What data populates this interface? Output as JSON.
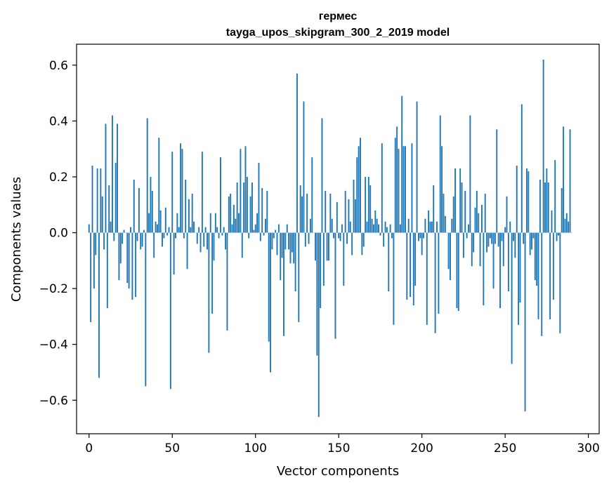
{
  "chart_data": {
    "type": "bar",
    "title": "гермес",
    "subtitle": "tayga_upos_skipgram_300_2_2019 model",
    "xlabel": "Vector components",
    "ylabel": "Components values",
    "xlim": [
      -7.5,
      306.5
    ],
    "ylim": [
      -0.72,
      0.675
    ],
    "x_ticks": [
      0,
      50,
      100,
      150,
      200,
      250,
      300
    ],
    "x_tick_labels": [
      "0",
      "50",
      "100",
      "150",
      "200",
      "250",
      "300"
    ],
    "y_ticks": [
      -0.6,
      -0.4,
      -0.2,
      0.0,
      0.2,
      0.4,
      0.6
    ],
    "y_tick_labels": [
      "−0.6",
      "−0.4",
      "−0.2",
      "0.0",
      "0.2",
      "0.4",
      "0.6"
    ],
    "grid": false,
    "bar_color": "#1f77b4",
    "values": [
      0.03,
      -0.32,
      0.24,
      -0.2,
      -0.08,
      0.23,
      -0.52,
      0.23,
      0.13,
      -0.06,
      0.39,
      -0.27,
      0.17,
      0.04,
      0.42,
      -0.03,
      0.25,
      0.39,
      -0.17,
      -0.11,
      -0.04,
      0.01,
      0.0,
      -0.18,
      -0.2,
      0.02,
      -0.24,
      0.19,
      -0.23,
      -0.03,
      0.16,
      -0.06,
      -0.05,
      0.01,
      -0.55,
      0.41,
      0.07,
      0.2,
      0.15,
      -0.09,
      0.04,
      0.03,
      0.34,
      0.08,
      -0.05,
      -0.02,
      0.09,
      -0.01,
      0.02,
      -0.56,
      0.29,
      -0.15,
      -0.02,
      0.07,
      0.02,
      0.32,
      0.3,
      -0.02,
      0.19,
      -0.13,
      0.12,
      0.02,
      0.14,
      0.04,
      0.0,
      -0.04,
      0.02,
      -0.07,
      0.29,
      -0.05,
      0.02,
      -0.06,
      -0.43,
      0.07,
      -0.29,
      -0.1,
      0.07,
      0.02,
      -0.02,
      0.27,
      -0.01,
      0.02,
      -0.06,
      -0.35,
      0.13,
      0.14,
      0.03,
      0.1,
      0.05,
      0.18,
      0.07,
      0.3,
      -0.09,
      0.18,
      0.31,
      0.2,
      -0.02,
      0.13,
      0.18,
      0.01,
      0.03,
      0.07,
      0.25,
      -0.03,
      0.16,
      -0.01,
      0.05,
      0.15,
      -0.39,
      -0.5,
      -0.06,
      -0.02,
      0.01,
      -0.08,
      0.03,
      -0.17,
      -0.09,
      -0.37,
      -0.06,
      0.03,
      -0.06,
      -0.11,
      -0.07,
      -0.11,
      -0.21,
      0.57,
      -0.32,
      0.17,
      0.13,
      0.47,
      -0.05,
      0.14,
      -0.04,
      0.05,
      0.27,
      0.0,
      -0.1,
      -0.44,
      -0.66,
      -0.27,
      0.41,
      -0.19,
      0.15,
      -0.1,
      -0.1,
      0.14,
      0.05,
      -0.02,
      -0.38,
      0.11,
      -0.02,
      -0.03,
      0.03,
      -0.19,
      0.15,
      -0.04,
      0.12,
      0.04,
      -0.08,
      0.19,
      0.12,
      0.27,
      0.31,
      0.34,
      -0.08,
      -0.05,
      0.2,
      0.04,
      0.2,
      0.17,
      0.05,
      0.03,
      0.08,
      0.05,
      0.03,
      -0.01,
      0.32,
      -0.05,
      0.04,
      0.02,
      -0.21,
      0.03,
      -0.02,
      -0.33,
      0.34,
      0.38,
      0.3,
      0.03,
      0.49,
      0.31,
      0.31,
      -0.24,
      0.05,
      -0.23,
      0.32,
      -0.26,
      -0.19,
      0.47,
      -0.03,
      -0.02,
      -0.08,
      -0.02,
      0.05,
      -0.33,
      0.08,
      0.04,
      0.04,
      0.17,
      -0.36,
      0.04,
      -0.29,
      0.42,
      0.31,
      0.14,
      0.06,
      0.0,
      -0.13,
      -0.17,
      0.05,
      0.13,
      0.23,
      -0.27,
      -0.28,
      0.23,
      0.18,
      -0.09,
      0.15,
      -0.02,
      0.03,
      0.42,
      -0.12,
      -0.07,
      0.09,
      0.15,
      0.07,
      -0.12,
      0.1,
      -0.26,
      0.14,
      -0.07,
      -0.05,
      -0.02,
      -0.04,
      -0.2,
      -0.04,
      0.37,
      -0.05,
      -0.27,
      -0.03,
      -0.12,
      0.02,
      0.13,
      -0.21,
      0.04,
      -0.47,
      -0.03,
      -0.09,
      0.24,
      -0.33,
      -0.25,
      0.46,
      -0.04,
      -0.64,
      0.23,
      0.22,
      -0.08,
      -0.06,
      -0.02,
      -0.17,
      -0.19,
      -0.31,
      0.19,
      -0.37,
      0.62,
      0.18,
      0.23,
      0.18,
      -0.31,
      0.08,
      -0.24,
      0.26,
      -0.03,
      -0.01,
      -0.36,
      0.16,
      0.38,
      0.05,
      0.07,
      0.04,
      0.37,
      0.0
    ]
  }
}
